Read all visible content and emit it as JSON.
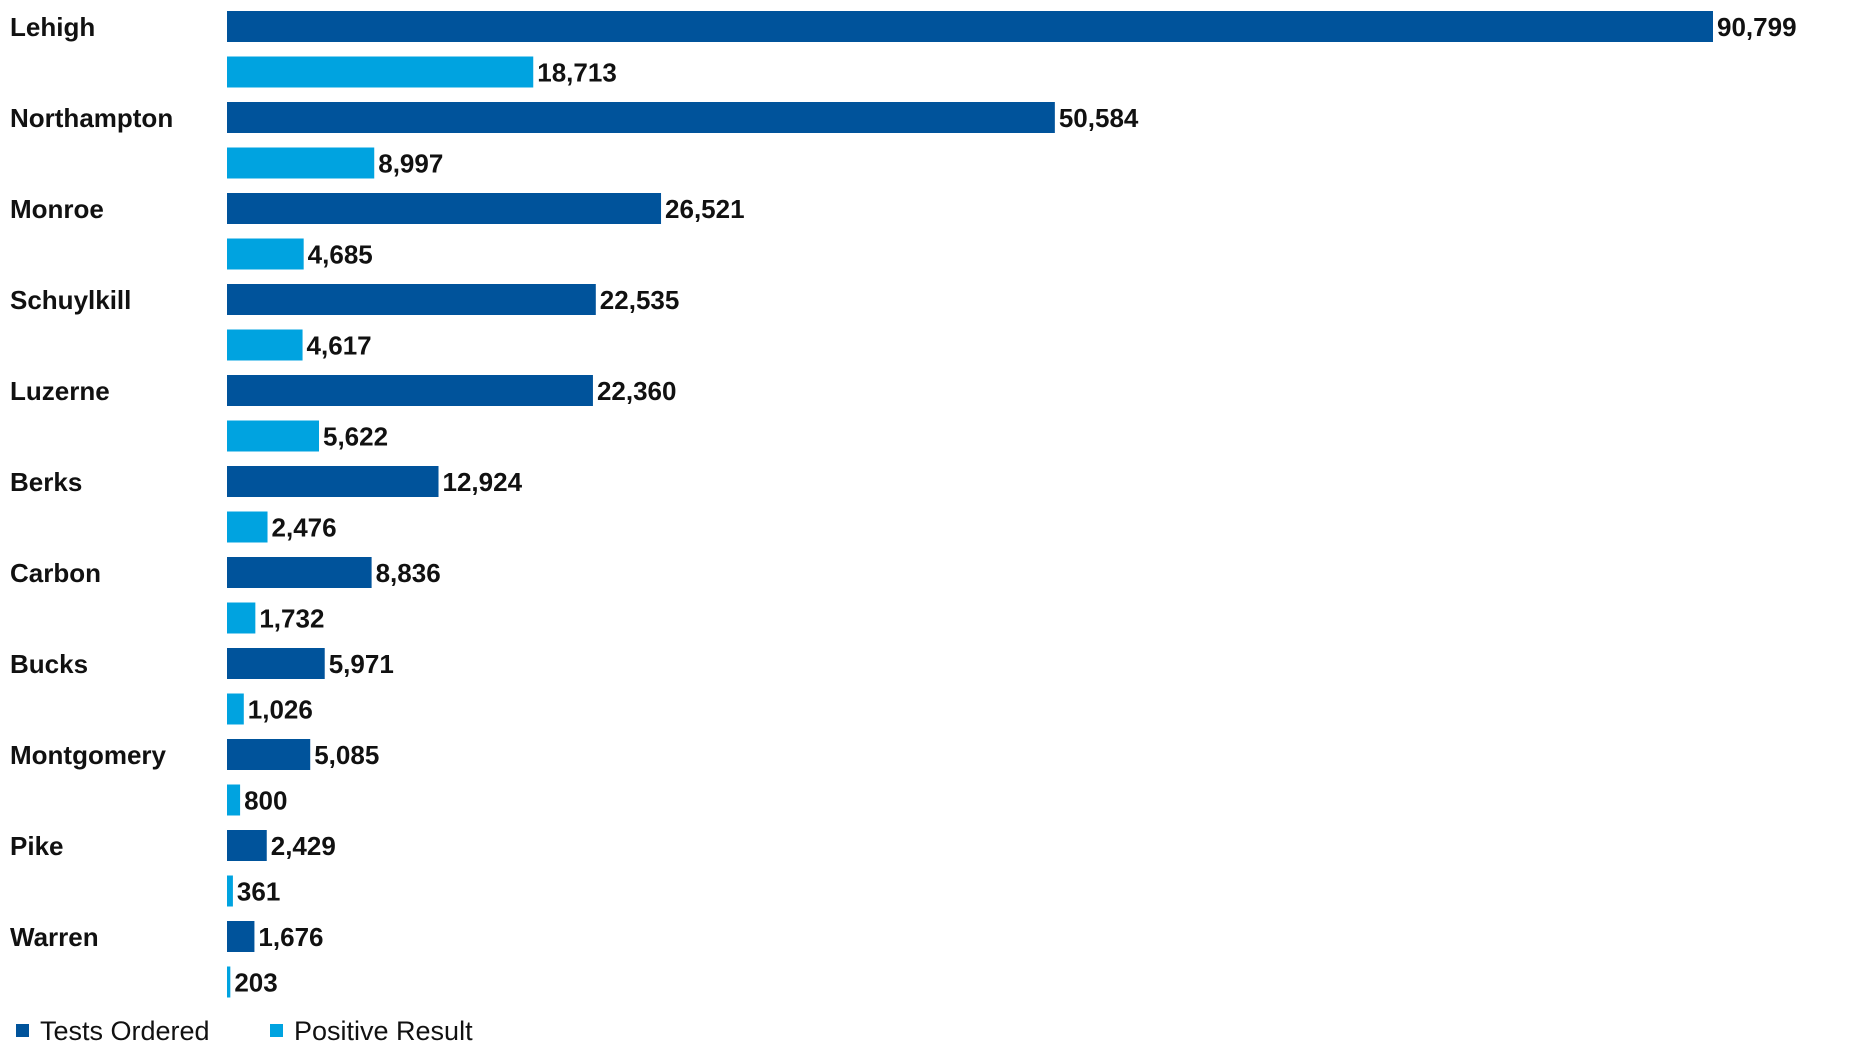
{
  "chart_data": {
    "type": "bar",
    "orientation": "horizontal",
    "categories": [
      "Lehigh",
      "Northampton",
      "Monroe",
      "Schuylkill",
      "Luzerne",
      "Berks",
      "Carbon",
      "Bucks",
      "Montgomery",
      "Pike",
      "Warren"
    ],
    "series": [
      {
        "name": "Tests Ordered",
        "color": "#00539b",
        "values": [
          90799,
          50584,
          26521,
          22535,
          22360,
          12924,
          8836,
          5971,
          5085,
          2429,
          1676
        ],
        "labels": [
          "90,799",
          "50,584",
          "26,521",
          "22,535",
          "22,360",
          "12,924",
          "8,836",
          "5,971",
          "5,085",
          "2,429",
          "1,676"
        ]
      },
      {
        "name": "Positive Result",
        "color": "#00a3e0",
        "values": [
          18713,
          8997,
          4685,
          4617,
          5622,
          2476,
          1732,
          1026,
          800,
          361,
          203
        ],
        "labels": [
          "18,713",
          "8,997",
          "4,685",
          "4,617",
          "5,622",
          "2,476",
          "1,732",
          "1,026",
          "800",
          "361",
          "203"
        ]
      }
    ],
    "xlim": [
      0,
      90799
    ],
    "grid": false,
    "legend_position": "bottom-left",
    "title": "",
    "xlabel": "",
    "ylabel": ""
  }
}
